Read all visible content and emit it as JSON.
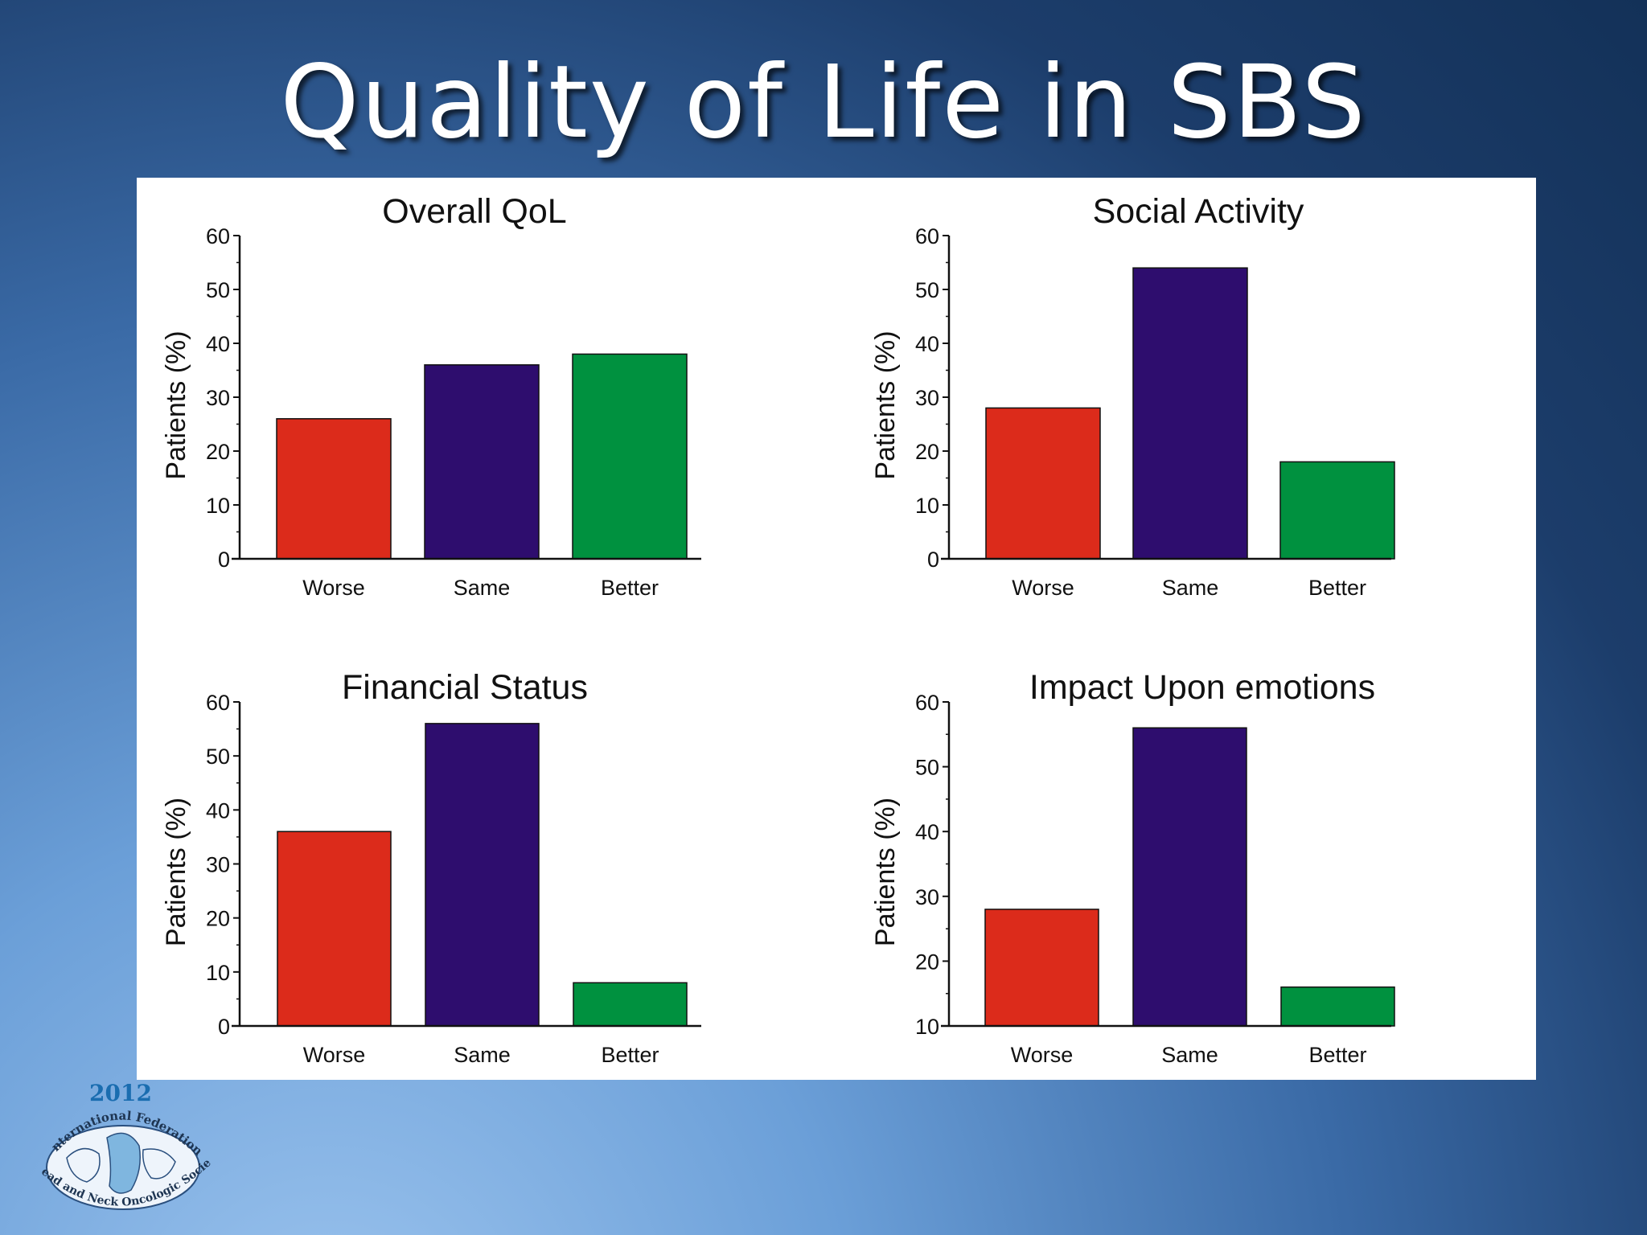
{
  "slide": {
    "title": "Quality of Life in SBS"
  },
  "logo": {
    "year": "2012",
    "text_top": "International Federation",
    "text_bottom": "of Head and Neck Oncologic Societies"
  },
  "colors": {
    "worse": "#dc2b1b",
    "same": "#2e0d6e",
    "better": "#00913f"
  },
  "chart_data": [
    {
      "type": "bar",
      "title": "Overall QoL",
      "ylabel": "Patients (%)",
      "categories": [
        "Worse",
        "Same",
        "Better"
      ],
      "values": [
        26,
        36,
        38
      ],
      "ylim": [
        0,
        60
      ],
      "yticks": [
        0,
        10,
        20,
        30,
        40,
        50,
        60
      ],
      "grid": false
    },
    {
      "type": "bar",
      "title": "Social Activity",
      "ylabel": "Patients (%)",
      "categories": [
        "Worse",
        "Same",
        "Better"
      ],
      "values": [
        28,
        54,
        18
      ],
      "ylim": [
        0,
        60
      ],
      "yticks": [
        0,
        10,
        20,
        30,
        40,
        50,
        60
      ],
      "grid": false
    },
    {
      "type": "bar",
      "title": "Financial Status",
      "ylabel": "Patients (%)",
      "categories": [
        "Worse",
        "Same",
        "Better"
      ],
      "values": [
        36,
        56,
        8
      ],
      "ylim": [
        0,
        60
      ],
      "yticks": [
        0,
        10,
        20,
        30,
        40,
        50,
        60
      ],
      "grid": false
    },
    {
      "type": "bar",
      "title": "Impact Upon emotions",
      "ylabel": "Patients (%)",
      "categories": [
        "Worse",
        "Same",
        "Better"
      ],
      "values": [
        28,
        56,
        16
      ],
      "ylim": [
        10,
        60
      ],
      "yticks": [
        10,
        20,
        30,
        40,
        50,
        60
      ],
      "grid": false
    }
  ]
}
